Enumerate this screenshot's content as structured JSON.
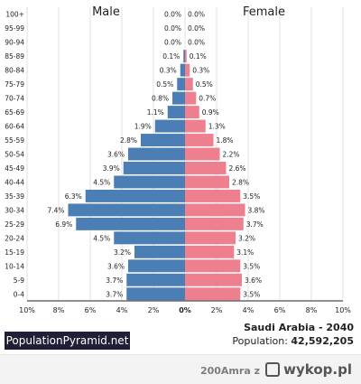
{
  "chart_data": {
    "type": "bar",
    "orientation": "horizontal-pyramid",
    "categories": [
      "100+",
      "95-99",
      "90-94",
      "85-89",
      "80-84",
      "75-79",
      "70-74",
      "65-69",
      "60-64",
      "55-59",
      "50-54",
      "45-49",
      "40-44",
      "35-39",
      "30-34",
      "25-29",
      "20-24",
      "15-19",
      "10-14",
      "5-9",
      "0-4"
    ],
    "series": [
      {
        "name": "Male",
        "color": "#4a7eb5",
        "values": [
          0.0,
          0.0,
          0.0,
          0.1,
          0.3,
          0.5,
          0.8,
          1.1,
          1.9,
          2.8,
          3.6,
          3.9,
          4.5,
          6.3,
          7.4,
          6.9,
          4.5,
          3.2,
          3.6,
          3.7,
          3.7
        ],
        "labels": [
          "0.0%",
          "0.0%",
          "0.0%",
          "0.1%",
          "0.3%",
          "0.5%",
          "0.8%",
          "1.1%",
          "1.9%",
          "2.8%",
          "3.6%",
          "3.9%",
          "4.5%",
          "6.3%",
          "7.4%",
          "6.9%",
          "4.5%",
          "3.2%",
          "3.6%",
          "3.7%",
          "3.7%"
        ]
      },
      {
        "name": "Female",
        "color": "#ee7f8e",
        "values": [
          0.0,
          0.0,
          0.0,
          0.1,
          0.3,
          0.5,
          0.7,
          0.9,
          1.3,
          1.8,
          2.2,
          2.6,
          2.8,
          3.5,
          3.8,
          3.7,
          3.2,
          3.1,
          3.5,
          3.6,
          3.5
        ],
        "labels": [
          "0.0%",
          "0.0%",
          "0.0%",
          "0.1%",
          "0.3%",
          "0.5%",
          "0.7%",
          "0.9%",
          "1.3%",
          "1.8%",
          "2.2%",
          "2.6%",
          "2.8%",
          "3.5%",
          "3.8%",
          "3.7%",
          "3.2%",
          "3.1%",
          "3.5%",
          "3.6%",
          "3.5%"
        ]
      }
    ],
    "xlim": [
      -10,
      10
    ],
    "xticks": [
      "10%",
      "8%",
      "6%",
      "4%",
      "2%",
      "0%",
      "2%",
      "4%",
      "6%",
      "8%",
      "10%"
    ],
    "grid": true
  },
  "branding": {
    "site_name": "PopulationPyramid.net"
  },
  "info": {
    "country_year": "Saudi Arabia - 2040",
    "population_label": "Population:",
    "population_value": "42,592,205"
  },
  "watermark": {
    "user": "200Amra",
    "z": "z",
    "logo_text": "wykop.pl"
  }
}
